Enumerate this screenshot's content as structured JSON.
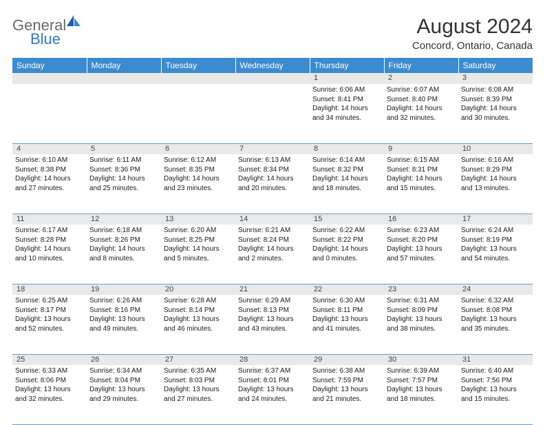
{
  "logo": {
    "part1": "General",
    "part2": "Blue"
  },
  "title": "August 2024",
  "location": "Concord, Ontario, Canada",
  "colors": {
    "header_bg": "#3b8bd0",
    "header_text": "#ffffff",
    "daynum_bg": "#e9e9e9",
    "row_divider": "#6f98c2",
    "body_text": "#1a1a1a",
    "title_text": "#323232"
  },
  "day_headers": [
    "Sunday",
    "Monday",
    "Tuesday",
    "Wednesday",
    "Thursday",
    "Friday",
    "Saturday"
  ],
  "weeks": [
    {
      "nums": [
        "",
        "",
        "",
        "",
        "1",
        "2",
        "3"
      ],
      "cells": [
        null,
        null,
        null,
        null,
        {
          "sunrise": "Sunrise: 6:06 AM",
          "sunset": "Sunset: 8:41 PM",
          "daylight": "Daylight: 14 hours and 34 minutes."
        },
        {
          "sunrise": "Sunrise: 6:07 AM",
          "sunset": "Sunset: 8:40 PM",
          "daylight": "Daylight: 14 hours and 32 minutes."
        },
        {
          "sunrise": "Sunrise: 6:08 AM",
          "sunset": "Sunset: 8:39 PM",
          "daylight": "Daylight: 14 hours and 30 minutes."
        }
      ]
    },
    {
      "nums": [
        "4",
        "5",
        "6",
        "7",
        "8",
        "9",
        "10"
      ],
      "cells": [
        {
          "sunrise": "Sunrise: 6:10 AM",
          "sunset": "Sunset: 8:38 PM",
          "daylight": "Daylight: 14 hours and 27 minutes."
        },
        {
          "sunrise": "Sunrise: 6:11 AM",
          "sunset": "Sunset: 8:36 PM",
          "daylight": "Daylight: 14 hours and 25 minutes."
        },
        {
          "sunrise": "Sunrise: 6:12 AM",
          "sunset": "Sunset: 8:35 PM",
          "daylight": "Daylight: 14 hours and 23 minutes."
        },
        {
          "sunrise": "Sunrise: 6:13 AM",
          "sunset": "Sunset: 8:34 PM",
          "daylight": "Daylight: 14 hours and 20 minutes."
        },
        {
          "sunrise": "Sunrise: 6:14 AM",
          "sunset": "Sunset: 8:32 PM",
          "daylight": "Daylight: 14 hours and 18 minutes."
        },
        {
          "sunrise": "Sunrise: 6:15 AM",
          "sunset": "Sunset: 8:31 PM",
          "daylight": "Daylight: 14 hours and 15 minutes."
        },
        {
          "sunrise": "Sunrise: 6:16 AM",
          "sunset": "Sunset: 8:29 PM",
          "daylight": "Daylight: 14 hours and 13 minutes."
        }
      ]
    },
    {
      "nums": [
        "11",
        "12",
        "13",
        "14",
        "15",
        "16",
        "17"
      ],
      "cells": [
        {
          "sunrise": "Sunrise: 6:17 AM",
          "sunset": "Sunset: 8:28 PM",
          "daylight": "Daylight: 14 hours and 10 minutes."
        },
        {
          "sunrise": "Sunrise: 6:18 AM",
          "sunset": "Sunset: 8:26 PM",
          "daylight": "Daylight: 14 hours and 8 minutes."
        },
        {
          "sunrise": "Sunrise: 6:20 AM",
          "sunset": "Sunset: 8:25 PM",
          "daylight": "Daylight: 14 hours and 5 minutes."
        },
        {
          "sunrise": "Sunrise: 6:21 AM",
          "sunset": "Sunset: 8:24 PM",
          "daylight": "Daylight: 14 hours and 2 minutes."
        },
        {
          "sunrise": "Sunrise: 6:22 AM",
          "sunset": "Sunset: 8:22 PM",
          "daylight": "Daylight: 14 hours and 0 minutes."
        },
        {
          "sunrise": "Sunrise: 6:23 AM",
          "sunset": "Sunset: 8:20 PM",
          "daylight": "Daylight: 13 hours and 57 minutes."
        },
        {
          "sunrise": "Sunrise: 6:24 AM",
          "sunset": "Sunset: 8:19 PM",
          "daylight": "Daylight: 13 hours and 54 minutes."
        }
      ]
    },
    {
      "nums": [
        "18",
        "19",
        "20",
        "21",
        "22",
        "23",
        "24"
      ],
      "cells": [
        {
          "sunrise": "Sunrise: 6:25 AM",
          "sunset": "Sunset: 8:17 PM",
          "daylight": "Daylight: 13 hours and 52 minutes."
        },
        {
          "sunrise": "Sunrise: 6:26 AM",
          "sunset": "Sunset: 8:16 PM",
          "daylight": "Daylight: 13 hours and 49 minutes."
        },
        {
          "sunrise": "Sunrise: 6:28 AM",
          "sunset": "Sunset: 8:14 PM",
          "daylight": "Daylight: 13 hours and 46 minutes."
        },
        {
          "sunrise": "Sunrise: 6:29 AM",
          "sunset": "Sunset: 8:13 PM",
          "daylight": "Daylight: 13 hours and 43 minutes."
        },
        {
          "sunrise": "Sunrise: 6:30 AM",
          "sunset": "Sunset: 8:11 PM",
          "daylight": "Daylight: 13 hours and 41 minutes."
        },
        {
          "sunrise": "Sunrise: 6:31 AM",
          "sunset": "Sunset: 8:09 PM",
          "daylight": "Daylight: 13 hours and 38 minutes."
        },
        {
          "sunrise": "Sunrise: 6:32 AM",
          "sunset": "Sunset: 8:08 PM",
          "daylight": "Daylight: 13 hours and 35 minutes."
        }
      ]
    },
    {
      "nums": [
        "25",
        "26",
        "27",
        "28",
        "29",
        "30",
        "31"
      ],
      "cells": [
        {
          "sunrise": "Sunrise: 6:33 AM",
          "sunset": "Sunset: 8:06 PM",
          "daylight": "Daylight: 13 hours and 32 minutes."
        },
        {
          "sunrise": "Sunrise: 6:34 AM",
          "sunset": "Sunset: 8:04 PM",
          "daylight": "Daylight: 13 hours and 29 minutes."
        },
        {
          "sunrise": "Sunrise: 6:35 AM",
          "sunset": "Sunset: 8:03 PM",
          "daylight": "Daylight: 13 hours and 27 minutes."
        },
        {
          "sunrise": "Sunrise: 6:37 AM",
          "sunset": "Sunset: 8:01 PM",
          "daylight": "Daylight: 13 hours and 24 minutes."
        },
        {
          "sunrise": "Sunrise: 6:38 AM",
          "sunset": "Sunset: 7:59 PM",
          "daylight": "Daylight: 13 hours and 21 minutes."
        },
        {
          "sunrise": "Sunrise: 6:39 AM",
          "sunset": "Sunset: 7:57 PM",
          "daylight": "Daylight: 13 hours and 18 minutes."
        },
        {
          "sunrise": "Sunrise: 6:40 AM",
          "sunset": "Sunset: 7:56 PM",
          "daylight": "Daylight: 13 hours and 15 minutes."
        }
      ]
    }
  ]
}
